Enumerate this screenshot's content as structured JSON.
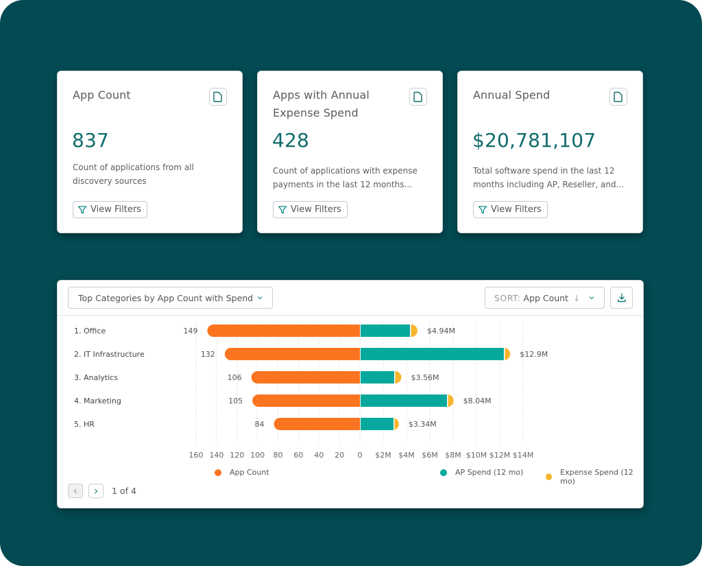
{
  "cards": [
    {
      "title": "App Count",
      "value": "837",
      "description": "Count of applications from all discovery sources",
      "filter_label": "View Filters",
      "icon": "document-icon"
    },
    {
      "title": "Apps with Annual Expense Spend",
      "value": "428",
      "description": "Count of applications with expense payments in the last 12 months...",
      "filter_label": "View Filters",
      "icon": "document-icon"
    },
    {
      "title": "Annual Spend",
      "value": "$20,781,107",
      "description": "Total software spend in the last 12 months including AP, Reseller, and...",
      "filter_label": "View Filters",
      "icon": "document-icon"
    }
  ],
  "panel": {
    "view_select": "Top Categories by App Count with Spend",
    "sort_key": "SORT:",
    "sort_value": "App Count",
    "sort_direction_icon": "arrow-down-icon",
    "download_icon": "download-icon",
    "pagination": {
      "text": "1 of 4",
      "prev_disabled": true
    }
  },
  "colors": {
    "background": "#034a52",
    "accent": "#0f6b6b",
    "app_count": "#fb7420",
    "ap_spend": "#07a99c",
    "expense_spend": "#f7b52e"
  },
  "chart_data": {
    "type": "bar",
    "orientation": "horizontal-diverging",
    "categories": [
      "1. Office",
      "2. IT Infrastructure",
      "3. Analytics",
      "4. Marketing",
      "5. HR"
    ],
    "series": [
      {
        "name": "App Count",
        "side": "left",
        "values": [
          149,
          132,
          106,
          105,
          84
        ],
        "labels": [
          "149",
          "132",
          "106",
          "105",
          "84"
        ]
      },
      {
        "name": "AP Spend (12 mo)",
        "side": "right",
        "stack": "spend",
        "values": [
          4.3,
          12.35,
          2.94,
          7.47,
          2.88
        ]
      },
      {
        "name": "Expense Spend (12 mo)",
        "side": "right",
        "stack": "spend",
        "values": [
          0.64,
          0.55,
          0.62,
          0.57,
          0.46
        ]
      }
    ],
    "spend_totals_labels": [
      "$4.94M",
      "$12.9M",
      "$3.56M",
      "$8.04M",
      "$3.34M"
    ],
    "left_axis": {
      "range": [
        0,
        160
      ],
      "ticks": [
        "160",
        "140",
        "120",
        "100",
        "80",
        "60",
        "40",
        "20",
        "0"
      ]
    },
    "right_axis": {
      "unit": "$M",
      "range": [
        0,
        14
      ],
      "ticks": [
        "0",
        "$2M",
        "$4M",
        "$6M",
        "$8M",
        "$10M",
        "$12M",
        "$14M"
      ]
    },
    "grid": true,
    "legend": [
      "App Count",
      "AP Spend (12 mo)",
      "Expense Spend (12 mo)"
    ],
    "legend_position": "bottom"
  }
}
